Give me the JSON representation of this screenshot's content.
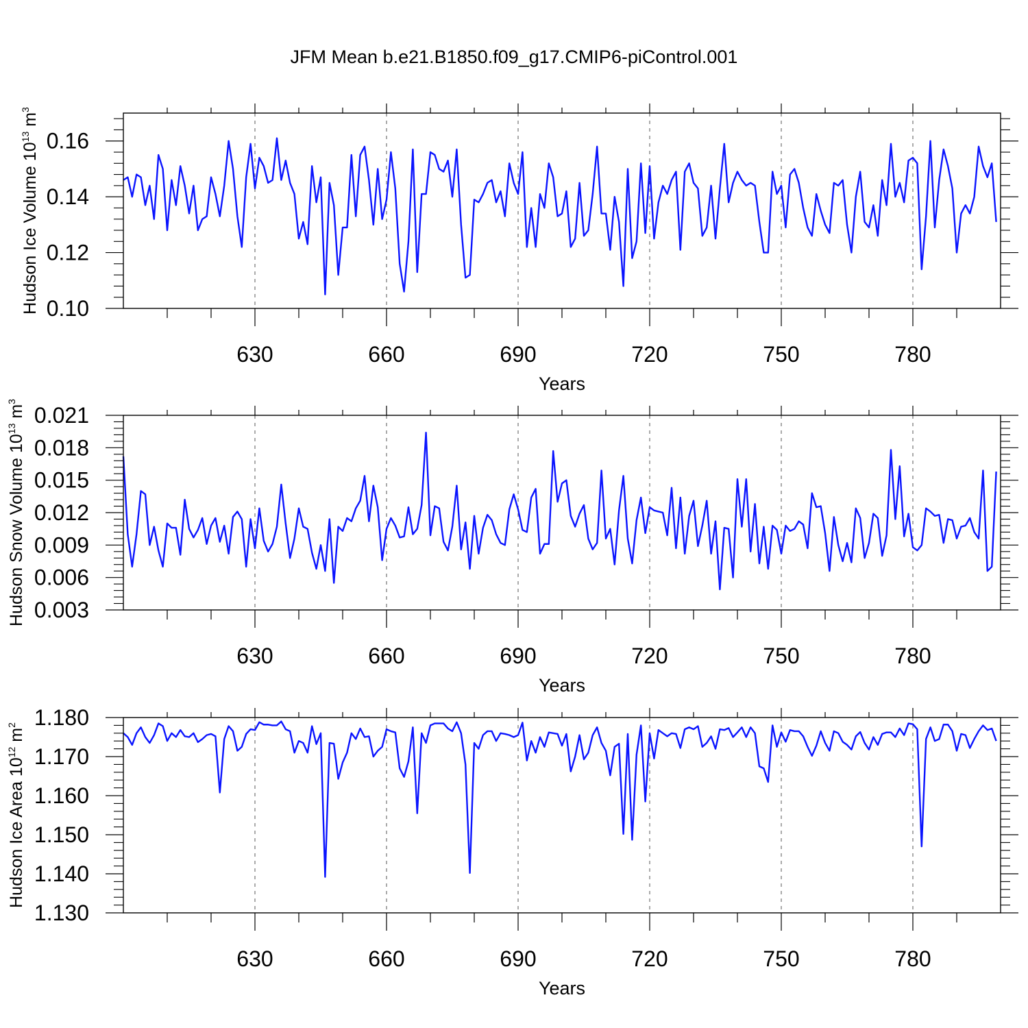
{
  "figure_title": "JFM Mean b.e21.B1850.f09_g17.CMIP6-piControl.001",
  "colors": {
    "line": "#0a14ff",
    "axis": "#000000",
    "grid": "#555555",
    "background": "#ffffff"
  },
  "chart_data": [
    {
      "type": "line",
      "xlabel": "Years",
      "ylabel": {
        "prefix": "Hudson Ice Volume 10",
        "exponent": "13",
        "unit": "m",
        "unit_exponent": "3"
      },
      "xlim": [
        600,
        800
      ],
      "ylim": [
        0.1,
        0.17
      ],
      "xticks": [
        630,
        660,
        690,
        720,
        750,
        780
      ],
      "xtick_labels": [
        "630",
        "660",
        "690",
        "720",
        "750",
        "780"
      ],
      "yticks": [
        0.1,
        0.12,
        0.14,
        0.16
      ],
      "ytick_labels": [
        "0.10",
        "0.12",
        "0.14",
        "0.16"
      ],
      "grid": "vertical dashed lines at major x ticks",
      "series": [
        {
          "name": "Hudson Ice Volume",
          "x_start": 600,
          "x_step": 1,
          "values": [
            0.146,
            0.147,
            0.14,
            0.148,
            0.147,
            0.137,
            0.144,
            0.132,
            0.155,
            0.15,
            0.128,
            0.146,
            0.137,
            0.151,
            0.144,
            0.134,
            0.144,
            0.128,
            0.132,
            0.133,
            0.147,
            0.141,
            0.133,
            0.144,
            0.16,
            0.15,
            0.133,
            0.122,
            0.147,
            0.159,
            0.143,
            0.154,
            0.151,
            0.145,
            0.146,
            0.161,
            0.146,
            0.153,
            0.145,
            0.141,
            0.125,
            0.131,
            0.123,
            0.151,
            0.138,
            0.147,
            0.105,
            0.145,
            0.137,
            0.112,
            0.129,
            0.129,
            0.155,
            0.133,
            0.155,
            0.158,
            0.146,
            0.13,
            0.15,
            0.132,
            0.139,
            0.156,
            0.143,
            0.116,
            0.106,
            0.124,
            0.157,
            0.113,
            0.141,
            0.141,
            0.156,
            0.155,
            0.15,
            0.149,
            0.153,
            0.14,
            0.157,
            0.13,
            0.111,
            0.112,
            0.139,
            0.138,
            0.141,
            0.145,
            0.146,
            0.138,
            0.142,
            0.133,
            0.152,
            0.145,
            0.141,
            0.156,
            0.122,
            0.136,
            0.122,
            0.141,
            0.136,
            0.152,
            0.147,
            0.133,
            0.134,
            0.142,
            0.122,
            0.125,
            0.145,
            0.126,
            0.128,
            0.141,
            0.158,
            0.134,
            0.134,
            0.121,
            0.14,
            0.131,
            0.108,
            0.15,
            0.118,
            0.124,
            0.152,
            0.127,
            0.151,
            0.125,
            0.138,
            0.144,
            0.141,
            0.146,
            0.149,
            0.121,
            0.149,
            0.152,
            0.145,
            0.143,
            0.126,
            0.129,
            0.144,
            0.125,
            0.143,
            0.159,
            0.138,
            0.145,
            0.149,
            0.146,
            0.144,
            0.145,
            0.144,
            0.131,
            0.12,
            0.12,
            0.149,
            0.141,
            0.144,
            0.129,
            0.148,
            0.15,
            0.145,
            0.136,
            0.129,
            0.126,
            0.141,
            0.135,
            0.13,
            0.127,
            0.145,
            0.144,
            0.146,
            0.13,
            0.12,
            0.14,
            0.149,
            0.131,
            0.129,
            0.137,
            0.126,
            0.146,
            0.137,
            0.159,
            0.14,
            0.145,
            0.138,
            0.153,
            0.154,
            0.152,
            0.114,
            0.133,
            0.16,
            0.129,
            0.146,
            0.157,
            0.151,
            0.143,
            0.12,
            0.134,
            0.137,
            0.134,
            0.14,
            0.158,
            0.151,
            0.147,
            0.152,
            0.131
          ]
        }
      ]
    },
    {
      "type": "line",
      "xlabel": "Years",
      "ylabel": {
        "prefix": "Hudson Snow Volume 10",
        "exponent": "13",
        "unit": "m",
        "unit_exponent": "3"
      },
      "xlim": [
        600,
        800
      ],
      "ylim": [
        0.003,
        0.021
      ],
      "xticks": [
        630,
        660,
        690,
        720,
        750,
        780
      ],
      "xtick_labels": [
        "630",
        "660",
        "690",
        "720",
        "750",
        "780"
      ],
      "yticks": [
        0.003,
        0.006,
        0.009,
        0.012,
        0.015,
        0.018,
        0.021
      ],
      "ytick_labels": [
        "0.003",
        "0.006",
        "0.009",
        "0.012",
        "0.015",
        "0.018",
        "0.021"
      ],
      "grid": "vertical dashed lines at major x ticks",
      "series": [
        {
          "name": "Hudson Snow Volume",
          "x_start": 600,
          "x_step": 1,
          "values": [
            0.0172,
            0.01,
            0.007,
            0.01,
            0.014,
            0.0137,
            0.009,
            0.0107,
            0.0085,
            0.007,
            0.011,
            0.0106,
            0.0106,
            0.0081,
            0.0132,
            0.0105,
            0.0097,
            0.0104,
            0.0115,
            0.0091,
            0.0108,
            0.0115,
            0.0093,
            0.0108,
            0.0082,
            0.0116,
            0.0121,
            0.0114,
            0.007,
            0.0114,
            0.0087,
            0.0124,
            0.0094,
            0.0084,
            0.0091,
            0.0107,
            0.0146,
            0.011,
            0.0078,
            0.0096,
            0.0124,
            0.0107,
            0.0105,
            0.0083,
            0.0068,
            0.009,
            0.0066,
            0.0114,
            0.0055,
            0.0107,
            0.0103,
            0.0115,
            0.0112,
            0.0124,
            0.0131,
            0.0154,
            0.0112,
            0.0145,
            0.0125,
            0.0076,
            0.0105,
            0.0115,
            0.0108,
            0.0097,
            0.0098,
            0.0125,
            0.01,
            0.0105,
            0.0127,
            0.0194,
            0.0099,
            0.0126,
            0.0124,
            0.0093,
            0.0085,
            0.0107,
            0.0145,
            0.0086,
            0.0111,
            0.0068,
            0.0117,
            0.0082,
            0.0106,
            0.0118,
            0.0113,
            0.01,
            0.0092,
            0.009,
            0.0123,
            0.0137,
            0.0123,
            0.0104,
            0.0102,
            0.0134,
            0.0142,
            0.0082,
            0.0091,
            0.0091,
            0.0177,
            0.013,
            0.0147,
            0.015,
            0.0117,
            0.0107,
            0.0119,
            0.0127,
            0.0096,
            0.0086,
            0.0092,
            0.0159,
            0.0096,
            0.0105,
            0.0072,
            0.0122,
            0.0154,
            0.0096,
            0.0073,
            0.0113,
            0.0134,
            0.0101,
            0.0125,
            0.0122,
            0.0121,
            0.012,
            0.0099,
            0.0143,
            0.0087,
            0.0134,
            0.0082,
            0.0117,
            0.0131,
            0.0089,
            0.0108,
            0.0131,
            0.0082,
            0.0112,
            0.0049,
            0.0106,
            0.0105,
            0.006,
            0.0151,
            0.0107,
            0.0151,
            0.0084,
            0.0128,
            0.0073,
            0.0107,
            0.0068,
            0.0108,
            0.0104,
            0.0082,
            0.0108,
            0.0103,
            0.0105,
            0.0112,
            0.0109,
            0.0087,
            0.0138,
            0.0125,
            0.0126,
            0.0101,
            0.0066,
            0.0116,
            0.009,
            0.0075,
            0.0092,
            0.0074,
            0.0124,
            0.0115,
            0.0078,
            0.0092,
            0.0119,
            0.0115,
            0.008,
            0.0099,
            0.0178,
            0.0114,
            0.0163,
            0.0098,
            0.0119,
            0.0088,
            0.0085,
            0.009,
            0.0124,
            0.0121,
            0.0117,
            0.0118,
            0.0092,
            0.0114,
            0.0113,
            0.0096,
            0.0107,
            0.0108,
            0.0115,
            0.0102,
            0.0096,
            0.0159,
            0.0066,
            0.007,
            0.0158
          ]
        }
      ]
    },
    {
      "type": "line",
      "xlabel": "Years",
      "ylabel": {
        "prefix": "Hudson Ice Area 10",
        "exponent": "12",
        "unit": "m",
        "unit_exponent": "2"
      },
      "xlim": [
        600,
        800
      ],
      "ylim": [
        1.13,
        1.18
      ],
      "xticks": [
        630,
        660,
        690,
        720,
        750,
        780
      ],
      "xtick_labels": [
        "630",
        "660",
        "690",
        "720",
        "750",
        "780"
      ],
      "yticks": [
        1.13,
        1.14,
        1.15,
        1.16,
        1.17,
        1.18
      ],
      "ytick_labels": [
        "1.130",
        "1.140",
        "1.150",
        "1.160",
        "1.170",
        "1.180"
      ],
      "grid": "vertical dashed lines at major x ticks",
      "series": [
        {
          "name": "Hudson Ice Area",
          "x_start": 600,
          "x_step": 1,
          "values": [
            1.176,
            1.175,
            1.173,
            1.176,
            1.1775,
            1.175,
            1.1735,
            1.1755,
            1.1785,
            1.1778,
            1.174,
            1.176,
            1.175,
            1.1768,
            1.1752,
            1.175,
            1.176,
            1.1737,
            1.1745,
            1.1755,
            1.1758,
            1.1752,
            1.1608,
            1.1745,
            1.1778,
            1.1765,
            1.1715,
            1.1725,
            1.1758,
            1.177,
            1.1768,
            1.1788,
            1.1782,
            1.1782,
            1.178,
            1.178,
            1.179,
            1.177,
            1.1765,
            1.171,
            1.174,
            1.1735,
            1.171,
            1.1778,
            1.1732,
            1.176,
            1.1392,
            1.1735,
            1.1733,
            1.1643,
            1.1685,
            1.171,
            1.176,
            1.1745,
            1.1772,
            1.175,
            1.1752,
            1.17,
            1.1715,
            1.1725,
            1.177,
            1.1765,
            1.1762,
            1.167,
            1.1648,
            1.1688,
            1.1775,
            1.1555,
            1.176,
            1.1735,
            1.178,
            1.1785,
            1.1785,
            1.1785,
            1.1772,
            1.1765,
            1.1788,
            1.176,
            1.168,
            1.1402,
            1.1735,
            1.172,
            1.1755,
            1.1765,
            1.1765,
            1.174,
            1.176,
            1.1758,
            1.1755,
            1.175,
            1.1755,
            1.1787,
            1.169,
            1.174,
            1.171,
            1.175,
            1.1725,
            1.1762,
            1.176,
            1.1758,
            1.1728,
            1.1758,
            1.1662,
            1.17,
            1.1755,
            1.1693,
            1.171,
            1.1755,
            1.1775,
            1.1735,
            1.1715,
            1.1652,
            1.1725,
            1.1733,
            1.1502,
            1.1758,
            1.1487,
            1.1705,
            1.178,
            1.1585,
            1.176,
            1.1695,
            1.1768,
            1.176,
            1.1752,
            1.176,
            1.1758,
            1.1722,
            1.177,
            1.1775,
            1.177,
            1.1778,
            1.1725,
            1.1735,
            1.1752,
            1.172,
            1.177,
            1.1768,
            1.1773,
            1.175,
            1.1762,
            1.1775,
            1.175,
            1.1775,
            1.176,
            1.1675,
            1.167,
            1.1635,
            1.178,
            1.1725,
            1.1762,
            1.1738,
            1.1768,
            1.1765,
            1.1765,
            1.1752,
            1.1725,
            1.1702,
            1.1728,
            1.1765,
            1.1735,
            1.1715,
            1.1765,
            1.176,
            1.1738,
            1.173,
            1.1718,
            1.1752,
            1.1763,
            1.1735,
            1.1718,
            1.175,
            1.173,
            1.1758,
            1.1762,
            1.1762,
            1.175,
            1.1772,
            1.1755,
            1.1785,
            1.1783,
            1.177,
            1.147,
            1.1745,
            1.1775,
            1.174,
            1.1745,
            1.1782,
            1.1782,
            1.1765,
            1.1715,
            1.1758,
            1.1755,
            1.1722,
            1.1745,
            1.1765,
            1.178,
            1.1768,
            1.1772,
            1.174
          ]
        }
      ]
    }
  ]
}
